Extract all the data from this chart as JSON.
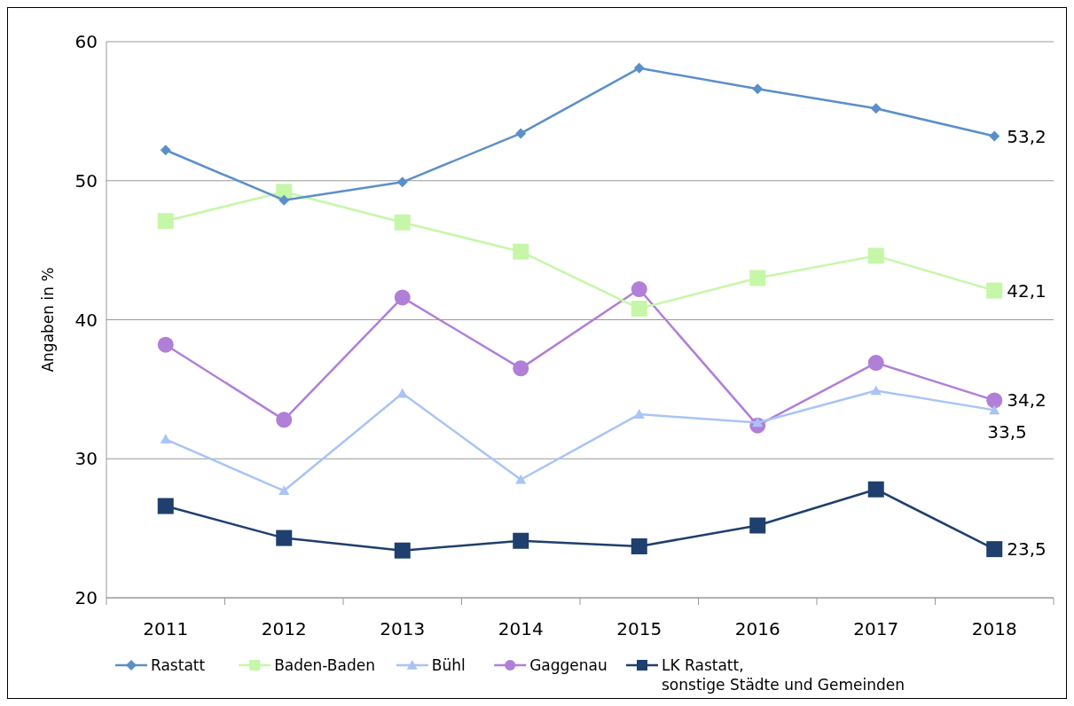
{
  "chart_data": {
    "type": "line",
    "ylabel": "Angaben in %",
    "categories": [
      "2011",
      "2012",
      "2013",
      "2014",
      "2015",
      "2016",
      "2017",
      "2018"
    ],
    "ylim": [
      20,
      60
    ],
    "yticks": [
      20,
      30,
      40,
      50,
      60
    ],
    "grid": "y",
    "legend": "bottom",
    "series": [
      {
        "name": "Rastatt",
        "color": "#5b8fc9",
        "marker": "diamond",
        "values": [
          52.2,
          48.6,
          49.9,
          53.4,
          58.1,
          56.6,
          55.2,
          53.2
        ],
        "value_labels": [
          null,
          null,
          null,
          null,
          null,
          null,
          null,
          "53,2"
        ]
      },
      {
        "name": "Baden-Baden",
        "color": "#c6f7a8",
        "marker": "square",
        "values": [
          47.1,
          49.2,
          47.0,
          44.9,
          40.8,
          43.0,
          44.6,
          42.1
        ],
        "value_labels": [
          null,
          null,
          null,
          null,
          null,
          null,
          null,
          "42,1"
        ]
      },
      {
        "name": "Bühl",
        "color": "#a9c4f5",
        "marker": "triangle",
        "values": [
          31.4,
          27.7,
          34.7,
          28.5,
          33.2,
          32.6,
          34.9,
          33.5
        ],
        "value_labels": [
          null,
          null,
          null,
          null,
          null,
          null,
          null,
          "33,5"
        ]
      },
      {
        "name": "Gaggenau",
        "color": "#b07fd8",
        "marker": "circle",
        "values": [
          38.2,
          32.8,
          41.6,
          36.5,
          42.2,
          32.4,
          36.9,
          34.2
        ],
        "value_labels": [
          null,
          null,
          null,
          null,
          null,
          null,
          null,
          "34,2"
        ]
      },
      {
        "name": "LK Rastatt, sonstige Städte und Gemeinden",
        "color": "#1f3f6e",
        "marker": "square",
        "values": [
          26.6,
          24.3,
          23.4,
          24.1,
          23.7,
          25.2,
          27.8,
          23.5
        ],
        "value_labels": [
          null,
          null,
          null,
          null,
          null,
          null,
          null,
          "23,5"
        ]
      }
    ]
  }
}
